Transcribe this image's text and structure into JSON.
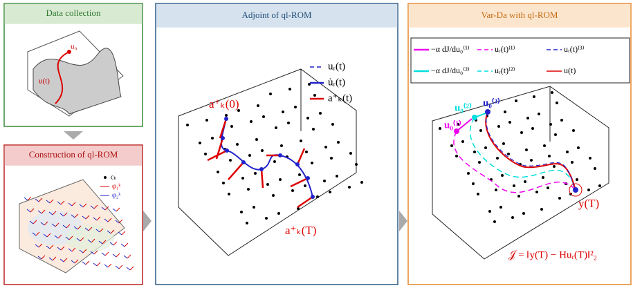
{
  "panels": [
    {
      "title": "Data collection",
      "labels": {
        "u0": "u₀",
        "ut": "u(t)"
      }
    },
    {
      "title": "Construction of ql-ROM",
      "legend": [
        "cₖ",
        "φ₁ᵏ",
        "φ₂ᵏ"
      ]
    },
    {
      "title": "Adjoint of ql-ROM",
      "legend": [
        "uᵣ(t)",
        "u̇ᵣ(t)",
        "a⁺ₖ(t)"
      ],
      "labels": {
        "a0": "a⁺ₖ(0)",
        "aT": "a⁺ₖ(T)"
      }
    },
    {
      "title": "Var-Da with ql-ROM",
      "legend": [
        "−α dJ/du₀⁽¹⁾",
        "uᵣ(t)⁽¹⁾",
        "uᵣ(t)⁽³⁾",
        "−α dJ/du₀⁽²⁾",
        "uᵣ(t)⁽²⁾",
        "u(t)"
      ],
      "labels": {
        "u01": "u₀⁽¹⁾",
        "u02": "u₀⁽²⁾",
        "u03": "u₀⁽³⁾",
        "yT": "y(T)",
        "cost": "𝒥 = ‖y(T) − Huᵣ(T)‖²₂"
      }
    }
  ]
}
